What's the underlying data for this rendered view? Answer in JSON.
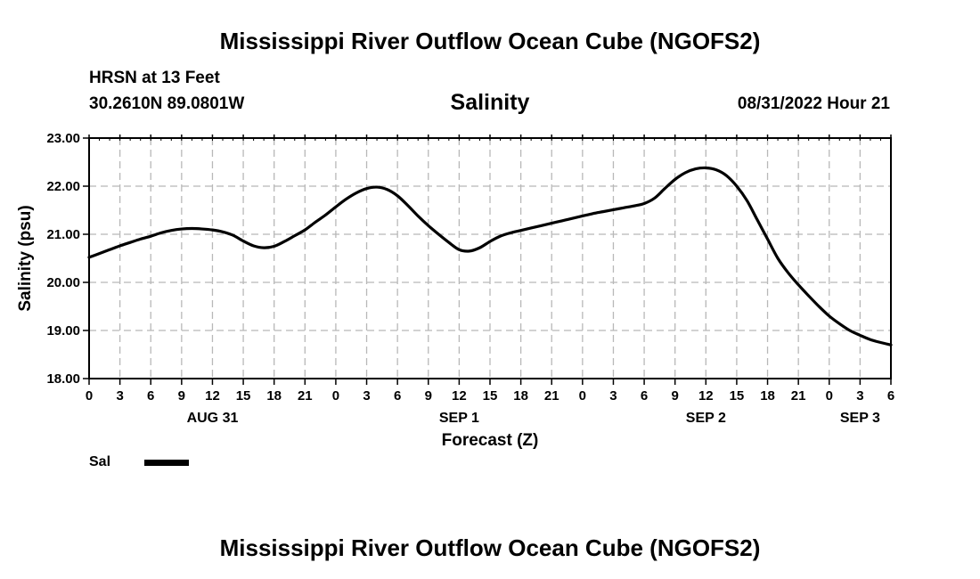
{
  "header": {
    "title": "Mississippi River Outflow Ocean Cube (NGOFS2)",
    "station_name": "HRSN at 13 Feet",
    "station_coords": "30.2610N  89.0801W",
    "panel_title": "Salinity",
    "valid_time": "08/31/2022 Hour 21"
  },
  "footer": {
    "title": "Mississippi River Outflow Ocean Cube (NGOFS2)"
  },
  "legend": {
    "label": "Sal",
    "color": "#000000"
  },
  "chart_data": {
    "type": "line",
    "title": "Salinity",
    "xlabel": "Forecast (Z)",
    "ylabel": "Salinity (psu)",
    "xlim": [
      0,
      78
    ],
    "ylim": [
      18.0,
      23.0
    ],
    "yticks": [
      "18.00",
      "19.00",
      "20.00",
      "21.00",
      "22.00",
      "23.00"
    ],
    "xticks": [
      "0",
      "3",
      "6",
      "9",
      "12",
      "15",
      "18",
      "21",
      "0",
      "3",
      "6",
      "9",
      "12",
      "15",
      "18",
      "21",
      "0",
      "3",
      "6",
      "9",
      "12",
      "15",
      "18",
      "21",
      "0",
      "3",
      "6"
    ],
    "day_labels": [
      {
        "label": "AUG 31",
        "hour": 12
      },
      {
        "label": "SEP 1",
        "hour": 36
      },
      {
        "label": "SEP 2",
        "hour": 60
      },
      {
        "label": "SEP 3",
        "hour": 75
      }
    ],
    "grid": true,
    "series": [
      {
        "name": "Sal",
        "x": [
          0,
          1,
          2,
          3,
          4,
          5,
          6,
          7,
          8,
          9,
          10,
          11,
          12,
          13,
          14,
          15,
          16,
          17,
          18,
          19,
          20,
          21,
          22,
          23,
          24,
          25,
          26,
          27,
          28,
          29,
          30,
          31,
          32,
          33,
          34,
          35,
          36,
          37,
          38,
          39,
          40,
          41,
          42,
          43,
          44,
          45,
          46,
          47,
          48,
          49,
          50,
          51,
          52,
          53,
          54,
          55,
          56,
          57,
          58,
          59,
          60,
          61,
          62,
          63,
          64,
          65,
          66,
          67,
          68,
          69,
          70,
          71,
          72,
          73,
          74,
          75,
          76,
          77,
          78
        ],
        "y": [
          20.52,
          20.6,
          20.68,
          20.76,
          20.83,
          20.9,
          20.96,
          21.03,
          21.08,
          21.11,
          21.12,
          21.11,
          21.09,
          21.05,
          20.98,
          20.86,
          20.76,
          20.72,
          20.75,
          20.85,
          20.97,
          21.09,
          21.25,
          21.4,
          21.57,
          21.73,
          21.86,
          21.95,
          21.98,
          21.93,
          21.8,
          21.6,
          21.38,
          21.18,
          21.0,
          20.83,
          20.68,
          20.65,
          20.72,
          20.85,
          20.96,
          21.03,
          21.08,
          21.13,
          21.18,
          21.23,
          21.28,
          21.33,
          21.38,
          21.43,
          21.47,
          21.51,
          21.55,
          21.59,
          21.64,
          21.75,
          21.95,
          22.14,
          22.28,
          22.36,
          22.38,
          22.34,
          22.22,
          22.0,
          21.7,
          21.3,
          20.9,
          20.5,
          20.2,
          19.95,
          19.72,
          19.5,
          19.3,
          19.14,
          19.0,
          18.9,
          18.81,
          18.75,
          18.7
        ]
      }
    ]
  }
}
